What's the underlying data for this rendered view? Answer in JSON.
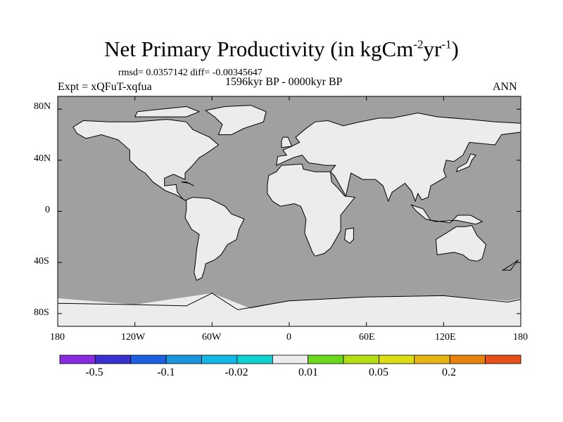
{
  "title": {
    "text": "Net Primary Productivity (in kgCm",
    "sup1": "-2",
    "mid": "yr",
    "sup2": "-1",
    "end": ")"
  },
  "stats": "rmsd= 0.0357142 diff= -0.00345647",
  "subtitle": "1596kyr BP - 0000kyr BP",
  "left_label": "Expt = xQFuT-xqfua",
  "right_label": "ANN",
  "map": {
    "ocean_color": "#a0a0a0",
    "ice_color": "#ececec",
    "land_neutral_color": "#ececec"
  },
  "axes": {
    "y_ticks": [
      "80N",
      "40N",
      "0",
      "40S",
      "80S"
    ],
    "x_ticks": [
      "180",
      "120W",
      "60W",
      "0",
      "60E",
      "120E",
      "180"
    ]
  },
  "colorbar": {
    "colors": [
      "#8a2be2",
      "#3a2fcf",
      "#1c5fe0",
      "#1a96df",
      "#14b8e6",
      "#10d2d2",
      "#ececec",
      "#6ad81c",
      "#b6dc14",
      "#dcdc14",
      "#e8b414",
      "#e8820f",
      "#e8501a"
    ],
    "labels": [
      "-0.5",
      "-0.1",
      "-0.02",
      "0.01",
      "0.05",
      "0.2"
    ]
  }
}
